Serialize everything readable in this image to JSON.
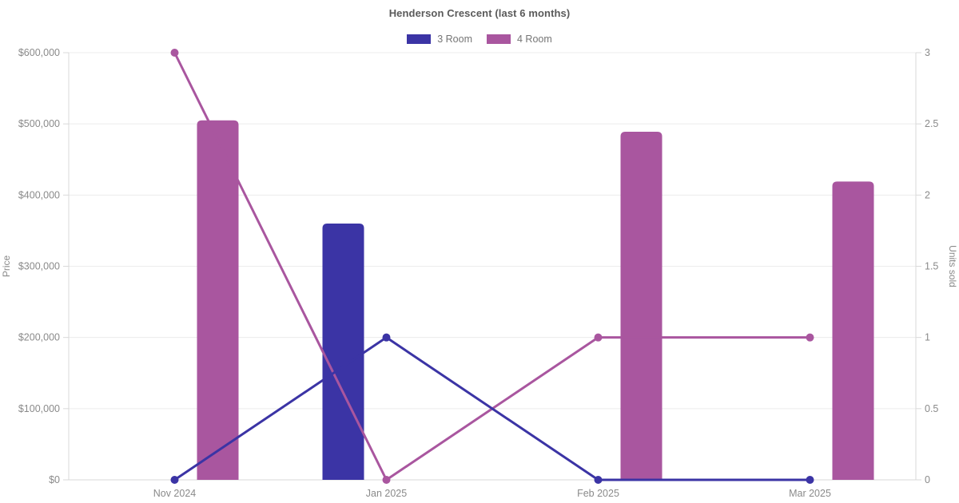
{
  "chart_data": {
    "type": "bar",
    "subtype": "combo-bar-line-dual-axis",
    "title": "Henderson Crescent (last 6 months)",
    "categories": [
      "Nov 2024",
      "Jan 2025",
      "Feb 2025",
      "Mar 2025"
    ],
    "series": [
      {
        "name": "3 Room",
        "color": "#3b34a5",
        "price_bars": [
          0,
          360000,
          0,
          0
        ],
        "units_line": [
          0,
          1,
          0,
          0
        ]
      },
      {
        "name": "4 Room",
        "color": "#a9569f",
        "price_bars": [
          505000,
          0,
          489000,
          419000
        ],
        "units_line": [
          3,
          0,
          1,
          1
        ]
      }
    ],
    "left_axis": {
      "label": "Price",
      "min": 0,
      "max": 600000,
      "tick_step": 100000,
      "tick_labels": [
        "$0",
        "$100,000",
        "$200,000",
        "$300,000",
        "$400,000",
        "$500,000",
        "$600,000"
      ]
    },
    "right_axis": {
      "label": "Units sold",
      "min": 0,
      "max": 3,
      "tick_step": 0.5,
      "tick_labels": [
        "0",
        "0.5",
        "1",
        "1.5",
        "2",
        "2.5",
        "3"
      ]
    },
    "grid": "horizontal-only",
    "legend_position": "top",
    "colors": {
      "grid_line": "#ececec",
      "axis_line": "#d9d9d9",
      "tick_text": "#8a8a8a",
      "title_text": "#5a5a5a"
    }
  }
}
